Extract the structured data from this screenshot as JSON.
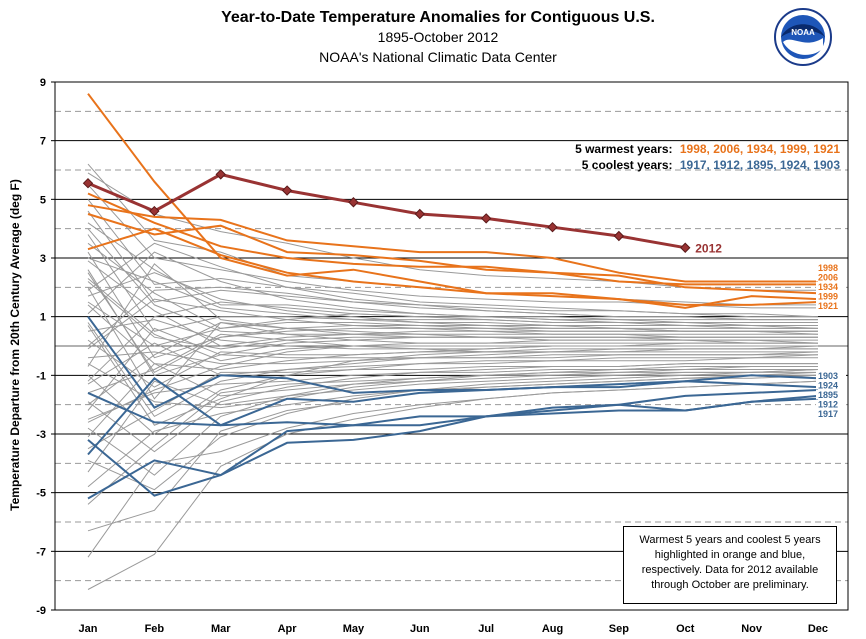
{
  "header": {
    "title": "Year-to-Date  Temperature  Anomalies  for  Contiguous  U.S.",
    "subtitle1": "1895-October 2012",
    "subtitle2": "NOAA's National Climatic Data Center"
  },
  "logo": {
    "text": "NOAA",
    "icon": "noaa-logo-icon"
  },
  "note": "Warmest 5 years and coolest 5 years highlighted in orange and blue, respectively. Data for 2012  available through October are preliminary.",
  "legend": {
    "warm_label": "5 warmest years:",
    "warm_years": "1998,  2006,  1934,  1999,  1921",
    "cool_label": "5 coolest years:",
    "cool_years": "1917,  1912,  1895,  1924,  1903"
  },
  "colors": {
    "warm": "#E8731B",
    "cool": "#3B6794",
    "highlight_2012": "#993333",
    "background_lines": "#9a9a9a"
  },
  "chart_data": {
    "type": "line",
    "ylabel": "Temperature Departure from 20th Century Average (deg F)",
    "xlabel": "",
    "categories": [
      "Jan",
      "Feb",
      "Mar",
      "Apr",
      "May",
      "Jun",
      "Jul",
      "Aug",
      "Sep",
      "Oct",
      "Nov",
      "Dec"
    ],
    "ylim": [
      -9,
      9
    ],
    "yticks": [
      -9,
      -7,
      -5,
      -3,
      -1,
      1,
      3,
      5,
      7,
      9
    ],
    "grid": "solid lines at odd values, dashed lines at even values",
    "highlight": {
      "name": "2012",
      "values": [
        5.55,
        4.6,
        5.85,
        5.3,
        4.9,
        4.5,
        4.35,
        4.05,
        3.75,
        3.35
      ]
    },
    "warm_series": [
      {
        "name": "1998",
        "values": [
          4.8,
          4.4,
          4.3,
          3.6,
          3.4,
          3.2,
          3.2,
          3.0,
          2.5,
          2.2,
          2.2,
          2.2
        ]
      },
      {
        "name": "2006",
        "values": [
          5.2,
          4.2,
          3.4,
          3.0,
          2.8,
          2.7,
          2.7,
          2.5,
          2.2,
          2.1,
          2.1,
          2.1
        ]
      },
      {
        "name": "1934",
        "values": [
          4.5,
          3.8,
          4.1,
          3.2,
          3.1,
          2.9,
          2.6,
          2.5,
          2.4,
          2.0,
          1.9,
          1.8
        ]
      },
      {
        "name": "1999",
        "values": [
          3.3,
          4.0,
          3.1,
          2.5,
          2.2,
          2.0,
          1.8,
          1.7,
          1.6,
          1.3,
          1.7,
          1.6
        ]
      },
      {
        "name": "1921",
        "values": [
          8.6,
          5.6,
          3.0,
          2.4,
          2.6,
          2.2,
          1.8,
          1.8,
          1.6,
          1.4,
          1.4,
          1.5
        ]
      }
    ],
    "cool_series": [
      {
        "name": "1917",
        "values": [
          -3.2,
          -5.1,
          -4.4,
          -3.3,
          -3.2,
          -2.9,
          -2.4,
          -2.3,
          -2.2,
          -2.2,
          -1.9,
          -1.8
        ]
      },
      {
        "name": "1912",
        "values": [
          -5.2,
          -3.9,
          -4.4,
          -2.9,
          -2.7,
          -2.4,
          -2.4,
          -2.2,
          -2.0,
          -2.2,
          -1.9,
          -1.7
        ]
      },
      {
        "name": "1895",
        "values": [
          -3.7,
          -1.1,
          -2.7,
          -2.6,
          -2.7,
          -2.7,
          -2.4,
          -2.1,
          -2.0,
          -1.7,
          -1.6,
          -1.5
        ]
      },
      {
        "name": "1924",
        "values": [
          1.0,
          -2.1,
          -1.0,
          -1.1,
          -1.6,
          -1.5,
          -1.5,
          -1.4,
          -1.4,
          -1.2,
          -1.3,
          -1.4
        ]
      },
      {
        "name": "1903",
        "values": [
          -1.6,
          -2.6,
          -2.7,
          -1.8,
          -1.9,
          -1.6,
          -1.5,
          -1.4,
          -1.3,
          -1.2,
          -1.0,
          -1.1
        ]
      }
    ],
    "background_series": [
      [
        6.2,
        3.6,
        3.2,
        2.4,
        2.2,
        2.0,
        1.8,
        1.7,
        1.6,
        1.5,
        1.4,
        1.4
      ],
      [
        5.9,
        4.5,
        3.9,
        3.5,
        3.0,
        2.6,
        2.4,
        2.3,
        2.2,
        2.0,
        1.9,
        1.9
      ],
      [
        5.5,
        3.0,
        2.6,
        2.2,
        1.9,
        1.7,
        1.6,
        1.5,
        1.5,
        1.4,
        1.3,
        1.3
      ],
      [
        5.0,
        2.1,
        2.3,
        2.0,
        1.8,
        1.5,
        1.4,
        1.3,
        1.2,
        1.1,
        1.1,
        1.0
      ],
      [
        4.6,
        1.5,
        1.9,
        1.7,
        1.5,
        1.4,
        1.3,
        1.2,
        1.2,
        1.1,
        1.0,
        1.0
      ],
      [
        4.2,
        2.6,
        1.4,
        1.4,
        1.2,
        1.1,
        1.0,
        1.0,
        0.9,
        0.9,
        0.9,
        0.9
      ],
      [
        3.8,
        0.5,
        1.0,
        1.0,
        0.9,
        0.9,
        0.9,
        0.8,
        0.8,
        0.8,
        0.7,
        0.7
      ],
      [
        3.5,
        1.8,
        0.6,
        0.8,
        0.8,
        0.7,
        0.7,
        0.7,
        0.6,
        0.6,
        0.6,
        0.6
      ],
      [
        3.2,
        -0.4,
        0.3,
        0.5,
        0.6,
        0.6,
        0.6,
        0.5,
        0.5,
        0.5,
        0.5,
        0.5
      ],
      [
        2.9,
        1.2,
        0.0,
        0.3,
        0.4,
        0.4,
        0.4,
        0.4,
        0.4,
        0.4,
        0.4,
        0.4
      ],
      [
        2.6,
        -1.0,
        -0.3,
        0.1,
        0.2,
        0.3,
        0.3,
        0.3,
        0.3,
        0.3,
        0.3,
        0.3
      ],
      [
        2.3,
        0.4,
        -0.5,
        -0.1,
        0.0,
        0.1,
        0.1,
        0.2,
        0.2,
        0.2,
        0.2,
        0.2
      ],
      [
        2.0,
        -1.8,
        0.8,
        0.6,
        0.5,
        0.4,
        0.3,
        0.3,
        0.3,
        0.2,
        0.2,
        0.1
      ],
      [
        1.7,
        2.5,
        1.6,
        1.2,
        1.0,
        0.8,
        0.7,
        0.6,
        0.6,
        0.5,
        0.5,
        0.4
      ],
      [
        1.4,
        -0.6,
        -0.8,
        -0.5,
        -0.3,
        -0.2,
        -0.1,
        0.0,
        0.0,
        0.1,
        0.1,
        0.1
      ],
      [
        1.1,
        3.2,
        2.2,
        1.6,
        1.3,
        1.1,
        1.0,
        0.9,
        0.8,
        0.8,
        0.8,
        0.8
      ],
      [
        0.8,
        -2.4,
        -1.2,
        -0.8,
        -0.6,
        -0.4,
        -0.3,
        -0.2,
        -0.2,
        -0.1,
        -0.1,
        0.0
      ],
      [
        0.5,
        0.9,
        0.2,
        0.0,
        -0.1,
        -0.1,
        -0.1,
        0.0,
        0.0,
        0.0,
        0.0,
        0.0
      ],
      [
        0.2,
        -1.4,
        -0.2,
        -0.3,
        -0.3,
        -0.2,
        -0.2,
        -0.2,
        -0.1,
        -0.1,
        -0.1,
        -0.1
      ],
      [
        -0.1,
        1.6,
        1.2,
        0.9,
        0.7,
        0.6,
        0.5,
        0.4,
        0.4,
        0.3,
        0.3,
        0.3
      ],
      [
        -0.4,
        -0.2,
        -0.6,
        -0.6,
        -0.5,
        -0.4,
        -0.4,
        -0.3,
        -0.3,
        -0.3,
        -0.3,
        -0.2
      ],
      [
        -0.7,
        2.8,
        0.9,
        0.6,
        0.4,
        0.3,
        0.3,
        0.2,
        0.2,
        0.2,
        0.1,
        0.1
      ],
      [
        -1.0,
        -3.0,
        -1.5,
        -1.0,
        -0.8,
        -0.6,
        -0.5,
        -0.5,
        -0.4,
        -0.4,
        -0.4,
        -0.3
      ],
      [
        -1.3,
        0.1,
        -1.0,
        -0.8,
        -0.7,
        -0.6,
        -0.6,
        -0.5,
        -0.5,
        -0.5,
        -0.4,
        -0.4
      ],
      [
        -1.6,
        -0.8,
        0.4,
        0.2,
        0.0,
        -0.1,
        -0.2,
        -0.2,
        -0.2,
        -0.2,
        -0.2,
        -0.2
      ],
      [
        -1.9,
        -3.6,
        -1.9,
        -1.4,
        -1.1,
        -0.9,
        -0.8,
        -0.7,
        -0.7,
        -0.6,
        -0.6,
        -0.6
      ],
      [
        -2.2,
        0.6,
        -0.3,
        -0.4,
        -0.4,
        -0.4,
        -0.4,
        -0.4,
        -0.3,
        -0.3,
        -0.3,
        -0.3
      ],
      [
        -2.5,
        -1.6,
        -1.3,
        -1.2,
        -1.0,
        -0.9,
        -0.9,
        -0.8,
        -0.8,
        -0.7,
        -0.7,
        -0.7
      ],
      [
        -2.8,
        -4.4,
        -2.4,
        -1.7,
        -1.3,
        -1.1,
        -1.0,
        -0.9,
        -0.9,
        -0.8,
        -0.8,
        -0.8
      ],
      [
        -3.1,
        -0.6,
        -1.7,
        -1.5,
        -1.3,
        -1.2,
        -1.1,
        -1.0,
        -1.0,
        -0.9,
        -0.9,
        -0.8
      ],
      [
        -3.5,
        -2.2,
        -0.9,
        -0.9,
        -0.8,
        -0.8,
        -0.7,
        -0.7,
        -0.7,
        -0.6,
        -0.6,
        -0.6
      ],
      [
        -3.9,
        -4.9,
        -3.1,
        -2.3,
        -1.8,
        -1.5,
        -1.3,
        -1.2,
        -1.1,
        -1.0,
        -1.0,
        -0.9
      ],
      [
        -4.3,
        -1.2,
        -2.0,
        -1.7,
        -1.5,
        -1.3,
        -1.2,
        -1.1,
        -1.0,
        -1.0,
        -0.9,
        -0.9
      ],
      [
        -4.8,
        -2.9,
        -2.3,
        -2.0,
        -1.7,
        -1.5,
        -1.4,
        -1.3,
        -1.2,
        -1.1,
        -1.1,
        -1.0
      ],
      [
        -5.4,
        -3.4,
        -1.6,
        -1.3,
        -1.2,
        -1.1,
        -1.0,
        -1.0,
        -0.9,
        -0.9,
        -0.9,
        -0.8
      ],
      [
        -6.3,
        -5.6,
        -2.9,
        -2.2,
        -1.9,
        -1.6,
        -1.4,
        -1.3,
        -1.2,
        -1.1,
        -1.0,
        -1.0
      ],
      [
        -7.2,
        -4.0,
        -3.6,
        -2.8,
        -2.3,
        -2.0,
        -1.8,
        -1.6,
        -1.5,
        -1.4,
        -1.3,
        -1.2
      ],
      [
        -8.3,
        -7.1,
        -4.1,
        -3.0,
        -2.5,
        -2.1,
        -1.8,
        -1.6,
        -1.5,
        -1.4,
        -1.3,
        -1.2
      ],
      [
        1.5,
        0.0,
        0.6,
        0.9,
        1.1,
        1.0,
        0.9,
        0.8,
        0.8,
        0.7,
        0.7,
        0.6
      ],
      [
        0.0,
        1.9,
        2.0,
        1.8,
        1.5,
        1.3,
        1.2,
        1.1,
        1.0,
        1.0,
        0.9,
        0.9
      ],
      [
        2.5,
        -0.9,
        0.3,
        0.6,
        0.7,
        0.7,
        0.6,
        0.6,
        0.6,
        0.5,
        0.5,
        0.5
      ],
      [
        -1.2,
        1.0,
        1.5,
        1.3,
        1.1,
        1.0,
        1.0,
        0.9,
        0.9,
        0.8,
        0.8,
        0.8
      ],
      [
        3.0,
        2.2,
        1.3,
        1.1,
        0.9,
        0.8,
        0.8,
        0.7,
        0.7,
        0.7,
        0.6,
        0.6
      ],
      [
        -2.0,
        -0.3,
        0.8,
        0.4,
        0.2,
        0.1,
        0.1,
        0.1,
        0.1,
        0.1,
        0.1,
        0.1
      ],
      [
        0.7,
        -2.7,
        -1.8,
        -1.0,
        -0.5,
        -0.3,
        -0.2,
        -0.1,
        -0.1,
        -0.1,
        -0.1,
        -0.1
      ],
      [
        1.9,
        3.5,
        2.7,
        2.0,
        1.6,
        1.4,
        1.2,
        1.1,
        1.0,
        1.0,
        0.9,
        0.9
      ],
      [
        -0.6,
        -1.9,
        -2.1,
        -1.8,
        -1.4,
        -1.2,
        -1.0,
        -0.9,
        -0.8,
        -0.8,
        -0.7,
        -0.7
      ],
      [
        2.2,
        0.3,
        -0.1,
        0.2,
        0.3,
        0.3,
        0.3,
        0.3,
        0.3,
        0.3,
        0.3,
        0.3
      ],
      [
        -2.6,
        -1.5,
        -0.7,
        -0.2,
        0.0,
        0.0,
        0.0,
        0.0,
        0.0,
        0.0,
        0.0,
        0.0
      ],
      [
        4.0,
        1.4,
        0.5,
        0.4,
        0.4,
        0.5,
        0.5,
        0.5,
        0.5,
        0.5,
        0.5,
        0.5
      ]
    ]
  }
}
